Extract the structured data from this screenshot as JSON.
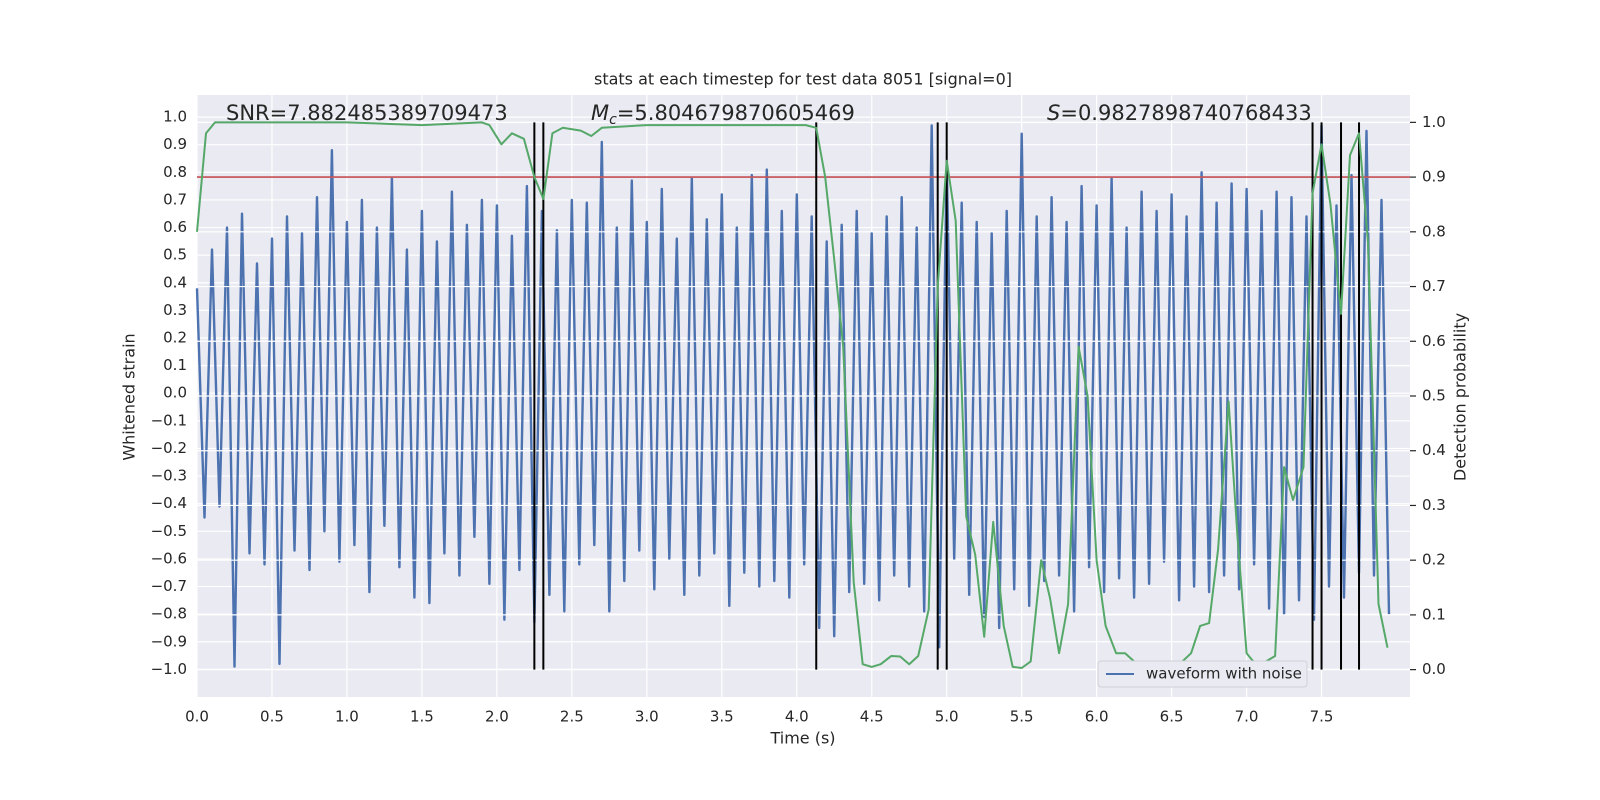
{
  "chart_data": {
    "type": "line",
    "title": "stats at each timestep for test data 8051 [signal=0]",
    "xlabel": "Time (s)",
    "ylabel": "Whitened strain",
    "y2label": "Detection probability",
    "annotations": [
      {
        "text": "SNR=7.882485389709473"
      },
      {
        "symbol": "M",
        "subscript": "c",
        "text": "=5.804679870605469"
      },
      {
        "symbol": "S",
        "text": "=0.9827898740768433"
      }
    ],
    "xlim": [
      0,
      8.09
    ],
    "ylim": [
      -1.1,
      1.08
    ],
    "y2lim": [
      -0.05,
      1.05
    ],
    "xticks": [
      {
        "value": 0,
        "label": "0.0"
      },
      {
        "value": 0.5,
        "label": "0.5"
      },
      {
        "value": 1,
        "label": "1.0"
      },
      {
        "value": 1.5,
        "label": "1.5"
      },
      {
        "value": 2,
        "label": "2.0"
      },
      {
        "value": 2.5,
        "label": "2.5"
      },
      {
        "value": 3,
        "label": "3.0"
      },
      {
        "value": 3.5,
        "label": "3.5"
      },
      {
        "value": 4,
        "label": "4.0"
      },
      {
        "value": 4.5,
        "label": "4.5"
      },
      {
        "value": 5,
        "label": "5.0"
      },
      {
        "value": 5.5,
        "label": "5.5"
      },
      {
        "value": 6,
        "label": "6.0"
      },
      {
        "value": 6.5,
        "label": "6.5"
      },
      {
        "value": 7,
        "label": "7.0"
      },
      {
        "value": 7.5,
        "label": "7.5"
      }
    ],
    "yticks": [
      {
        "value": -1,
        "label": "−1.0"
      },
      {
        "value": -0.9,
        "label": "−0.9"
      },
      {
        "value": -0.8,
        "label": "−0.8"
      },
      {
        "value": -0.7,
        "label": "−0.7"
      },
      {
        "value": -0.6,
        "label": "−0.6"
      },
      {
        "value": -0.5,
        "label": "−0.5"
      },
      {
        "value": -0.4,
        "label": "−0.4"
      },
      {
        "value": -0.3,
        "label": "−0.3"
      },
      {
        "value": -0.2,
        "label": "−0.2"
      },
      {
        "value": -0.1,
        "label": "−0.1"
      },
      {
        "value": 0,
        "label": "0.0"
      },
      {
        "value": 0.1,
        "label": "0.1"
      },
      {
        "value": 0.2,
        "label": "0.2"
      },
      {
        "value": 0.3,
        "label": "0.3"
      },
      {
        "value": 0.4,
        "label": "0.4"
      },
      {
        "value": 0.5,
        "label": "0.5"
      },
      {
        "value": 0.6,
        "label": "0.6"
      },
      {
        "value": 0.7,
        "label": "0.7"
      },
      {
        "value": 0.8,
        "label": "0.8"
      },
      {
        "value": 0.9,
        "label": "0.9"
      },
      {
        "value": 1,
        "label": "1.0"
      }
    ],
    "y2ticks": [
      {
        "value": 0,
        "label": "0.0"
      },
      {
        "value": 0.1,
        "label": "0.1"
      },
      {
        "value": 0.2,
        "label": "0.2"
      },
      {
        "value": 0.3,
        "label": "0.3"
      },
      {
        "value": 0.4,
        "label": "0.4"
      },
      {
        "value": 0.5,
        "label": "0.5"
      },
      {
        "value": 0.6,
        "label": "0.6"
      },
      {
        "value": 0.7,
        "label": "0.7"
      },
      {
        "value": 0.8,
        "label": "0.8"
      },
      {
        "value": 0.9,
        "label": "0.9"
      },
      {
        "value": 1,
        "label": "1.0"
      }
    ],
    "grid": true,
    "legend": "lower right",
    "series": [
      {
        "name": "waveform with noise",
        "color": "#4c72b0",
        "x": [
          0,
          0.05,
          0.1,
          0.15,
          0.2,
          0.25,
          0.3,
          0.35,
          0.4,
          0.45,
          0.5,
          0.55,
          0.6,
          0.65,
          0.7,
          0.75,
          0.8,
          0.85,
          0.9,
          0.95,
          1,
          1.05,
          1.1,
          1.15,
          1.2,
          1.25,
          1.3,
          1.35,
          1.4,
          1.45,
          1.5,
          1.55,
          1.6,
          1.65,
          1.7,
          1.75,
          1.8,
          1.85,
          1.9,
          1.95,
          2,
          2.05,
          2.1,
          2.15,
          2.2,
          2.25,
          2.3,
          2.35,
          2.4,
          2.45,
          2.5,
          2.55,
          2.6,
          2.65,
          2.7,
          2.75,
          2.8,
          2.85,
          2.9,
          2.95,
          3,
          3.05,
          3.1,
          3.15,
          3.2,
          3.25,
          3.3,
          3.35,
          3.4,
          3.45,
          3.5,
          3.55,
          3.6,
          3.65,
          3.7,
          3.75,
          3.8,
          3.85,
          3.9,
          3.95,
          4,
          4.05,
          4.1,
          4.15,
          4.2,
          4.25,
          4.3,
          4.35,
          4.4,
          4.45,
          4.5,
          4.55,
          4.6,
          4.65,
          4.7,
          4.75,
          4.8,
          4.85,
          4.9,
          4.95,
          5,
          5.05,
          5.1,
          5.15,
          5.2,
          5.25,
          5.3,
          5.35,
          5.4,
          5.45,
          5.5,
          5.55,
          5.6,
          5.65,
          5.7,
          5.75,
          5.8,
          5.85,
          5.9,
          5.95,
          6,
          6.05,
          6.1,
          6.15,
          6.2,
          6.25,
          6.3,
          6.35,
          6.4,
          6.45,
          6.5,
          6.55,
          6.6,
          6.65,
          6.7,
          6.75,
          6.8,
          6.85,
          6.9,
          6.95,
          7,
          7.05,
          7.1,
          7.15,
          7.2,
          7.25,
          7.3,
          7.35,
          7.4,
          7.45,
          7.5,
          7.55,
          7.6,
          7.65,
          7.7,
          7.75,
          7.8,
          7.85,
          7.9,
          7.95
        ],
        "values": [
          0.38,
          -0.45,
          0.52,
          -0.41,
          0.6,
          -0.99,
          0.65,
          -0.58,
          0.47,
          -0.62,
          0.56,
          -0.98,
          0.64,
          -0.57,
          0.58,
          -0.64,
          0.71,
          -0.5,
          0.88,
          -0.61,
          0.62,
          -0.55,
          0.7,
          -0.72,
          0.6,
          -0.48,
          0.78,
          -0.63,
          0.52,
          -0.74,
          0.66,
          -0.76,
          0.55,
          -0.58,
          0.73,
          -0.66,
          0.61,
          -0.52,
          0.7,
          -0.69,
          0.68,
          -0.82,
          0.57,
          -0.64,
          0.75,
          -0.83,
          0.66,
          -0.73,
          0.59,
          -0.79,
          0.7,
          -0.62,
          0.69,
          -0.55,
          0.91,
          -0.79,
          0.6,
          -0.68,
          0.77,
          -0.57,
          0.62,
          -0.71,
          0.74,
          -0.6,
          0.56,
          -0.73,
          0.78,
          -0.66,
          0.63,
          -0.58,
          0.72,
          -0.77,
          0.6,
          -0.65,
          0.79,
          -0.7,
          0.81,
          -0.68,
          0.66,
          -0.74,
          0.72,
          -0.62,
          0.64,
          -0.85,
          0.55,
          -0.88,
          0.61,
          -0.72,
          0.66,
          -0.69,
          0.58,
          -0.75,
          0.64,
          -0.66,
          0.71,
          -0.7,
          0.6,
          -0.79,
          0.97,
          -0.92,
          0.84,
          -0.6,
          0.69,
          -0.73,
          0.62,
          -0.81,
          0.58,
          -0.85,
          0.66,
          -0.71,
          0.94,
          -0.77,
          0.64,
          -0.68,
          0.71,
          -0.66,
          0.62,
          -0.79,
          0.75,
          -0.63,
          0.68,
          -0.72,
          0.78,
          -0.67,
          0.6,
          -0.74,
          0.73,
          -0.69,
          0.66,
          -0.61,
          0.72,
          -0.75,
          0.64,
          -0.7,
          0.8,
          -0.72,
          0.69,
          -0.66,
          0.76,
          -0.71,
          0.74,
          -0.62,
          0.66,
          -0.78,
          0.73,
          -0.8,
          0.71,
          -0.75,
          0.64,
          -0.82,
          0.97,
          -0.7,
          0.68,
          -0.74,
          0.79,
          -0.65,
          0.95,
          -0.66,
          0.7,
          -0.8
        ]
      },
      {
        "color": "#55a868",
        "axis": "y2",
        "x": [
          0,
          0.06,
          0.12,
          0.5,
          1,
          1.5,
          1.9,
          1.95,
          2.03,
          2.1,
          2.18,
          2.25,
          2.31,
          2.37,
          2.44,
          2.56,
          2.63,
          2.7,
          3,
          3.5,
          4.06,
          4.13,
          4.19,
          4.25,
          4.31,
          4.38,
          4.44,
          4.5,
          4.56,
          4.63,
          4.69,
          4.75,
          4.81,
          4.88,
          4.94,
          5,
          5.06,
          5.13,
          5.19,
          5.25,
          5.31,
          5.38,
          5.44,
          5.5,
          5.56,
          5.63,
          5.69,
          5.75,
          5.81,
          5.88,
          5.94,
          6,
          6.06,
          6.13,
          6.19,
          6.25,
          6.31,
          6.38,
          6.44,
          6.5,
          6.56,
          6.63,
          6.69,
          6.75,
          6.81,
          6.88,
          6.94,
          7,
          7.06,
          7.13,
          7.19,
          7.25,
          7.31,
          7.38,
          7.44,
          7.5,
          7.56,
          7.63,
          7.69,
          7.75,
          7.81,
          7.88,
          7.94
        ],
        "values": [
          0.8,
          0.98,
          1,
          1,
          1,
          0.995,
          1,
          0.995,
          0.96,
          0.98,
          0.97,
          0.9,
          0.86,
          0.98,
          0.99,
          0.985,
          0.975,
          0.99,
          0.995,
          0.995,
          0.995,
          0.99,
          0.9,
          0.75,
          0.59,
          0.16,
          0.01,
          0.005,
          0.01,
          0.025,
          0.024,
          0.01,
          0.025,
          0.11,
          0.7,
          0.93,
          0.82,
          0.28,
          0.21,
          0.06,
          0.27,
          0.08,
          0.005,
          0.003,
          0.015,
          0.2,
          0.13,
          0.03,
          0.12,
          0.59,
          0.5,
          0.2,
          0.08,
          0.03,
          0.03,
          0.015,
          0.005,
          0.003,
          0.005,
          0.008,
          0.012,
          0.03,
          0.08,
          0.085,
          0.22,
          0.49,
          0.24,
          0.03,
          0.01,
          0.015,
          0.025,
          0.37,
          0.31,
          0.37,
          0.87,
          0.96,
          0.85,
          0.65,
          0.94,
          0.98,
          0.78,
          0.12,
          0.04
        ]
      }
    ],
    "threshold": {
      "value": 0.9,
      "axis": "y2",
      "color": "#c44e52"
    },
    "vlines": {
      "x": [
        2.25,
        2.31,
        4.13,
        4.94,
        5.0,
        7.44,
        7.5,
        7.63,
        7.75
      ],
      "ymin": 0,
      "ymax": 1,
      "axis": "y2",
      "color": "#000000"
    }
  }
}
